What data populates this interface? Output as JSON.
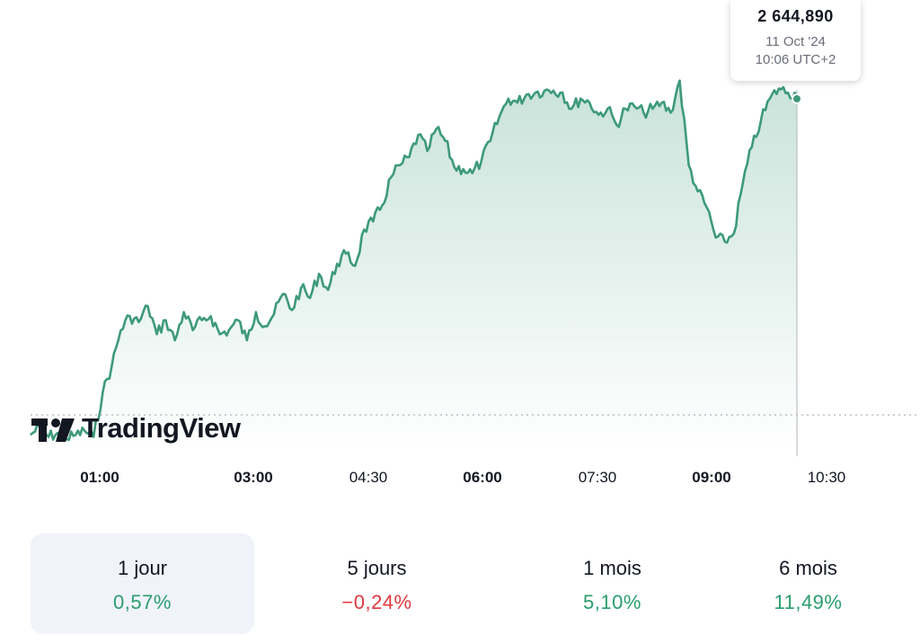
{
  "chart_data": {
    "type": "area",
    "x_ticks": [
      {
        "label": "01:00",
        "bold": true
      },
      {
        "label": "03:00",
        "bold": true
      },
      {
        "label": "04:30",
        "bold": false
      },
      {
        "label": "06:00",
        "bold": true
      },
      {
        "label": "07:30",
        "bold": false
      },
      {
        "label": "09:00",
        "bold": true
      },
      {
        "label": "10:30",
        "bold": false
      }
    ],
    "line_color": "#3d9a78",
    "fill_color": "#3d9a78",
    "ylim": [
      2626.5,
      2645.9
    ],
    "reference_line": 2628.4,
    "series": [
      {
        "values": [
          2627.2,
          2627.6,
          2627.1,
          2627.3,
          2627.0,
          2627.2,
          2627.4,
          2627.1,
          2629.3,
          2630.6,
          2632.4,
          2633.1,
          2632.8,
          2633.6,
          2632.2,
          2632.9,
          2631.9,
          2633.3,
          2632.4,
          2632.9,
          2633.1,
          2632.2,
          2632.4,
          2632.9,
          2631.9,
          2633.3,
          2632.6,
          2633.2,
          2634.2,
          2633.4,
          2634.5,
          2634.0,
          2635.2,
          2634.4,
          2635.7,
          2636.2,
          2635.6,
          2637.4,
          2637.8,
          2638.6,
          2640.0,
          2640.6,
          2641.0,
          2642.1,
          2641.3,
          2642.4,
          2641.8,
          2640.5,
          2640.4,
          2640.2,
          2640.8,
          2641.8,
          2643.0,
          2643.9,
          2643.7,
          2644.1,
          2644.2,
          2644.3,
          2644.3,
          2644.2,
          2643.4,
          2643.9,
          2643.7,
          2643.1,
          2643.4,
          2642.6,
          2643.4,
          2643.5,
          2643.2,
          2643.4,
          2643.7,
          2643.2,
          2644.8,
          2640.6,
          2639.3,
          2638.5,
          2637.0,
          2636.8,
          2637.2,
          2639.7,
          2641.5,
          2642.8,
          2643.9,
          2644.4,
          2644.2,
          2644.1
        ]
      }
    ],
    "tooltip": {
      "price": "2 644,890",
      "date": "11 Oct '24",
      "time": "10:06 UTC+2"
    }
  },
  "brand": {
    "name": "TradingView"
  },
  "periods": [
    {
      "label": "1 jour",
      "value": "0,57%",
      "trend": "pos",
      "active": true
    },
    {
      "label": "5 jours",
      "value": "−0,24%",
      "trend": "neg",
      "active": false
    },
    {
      "label": "1 mois",
      "value": "5,10%",
      "trend": "pos",
      "active": false
    },
    {
      "label": "6 mois",
      "value": "11,49%",
      "trend": "pos",
      "active": false
    }
  ]
}
